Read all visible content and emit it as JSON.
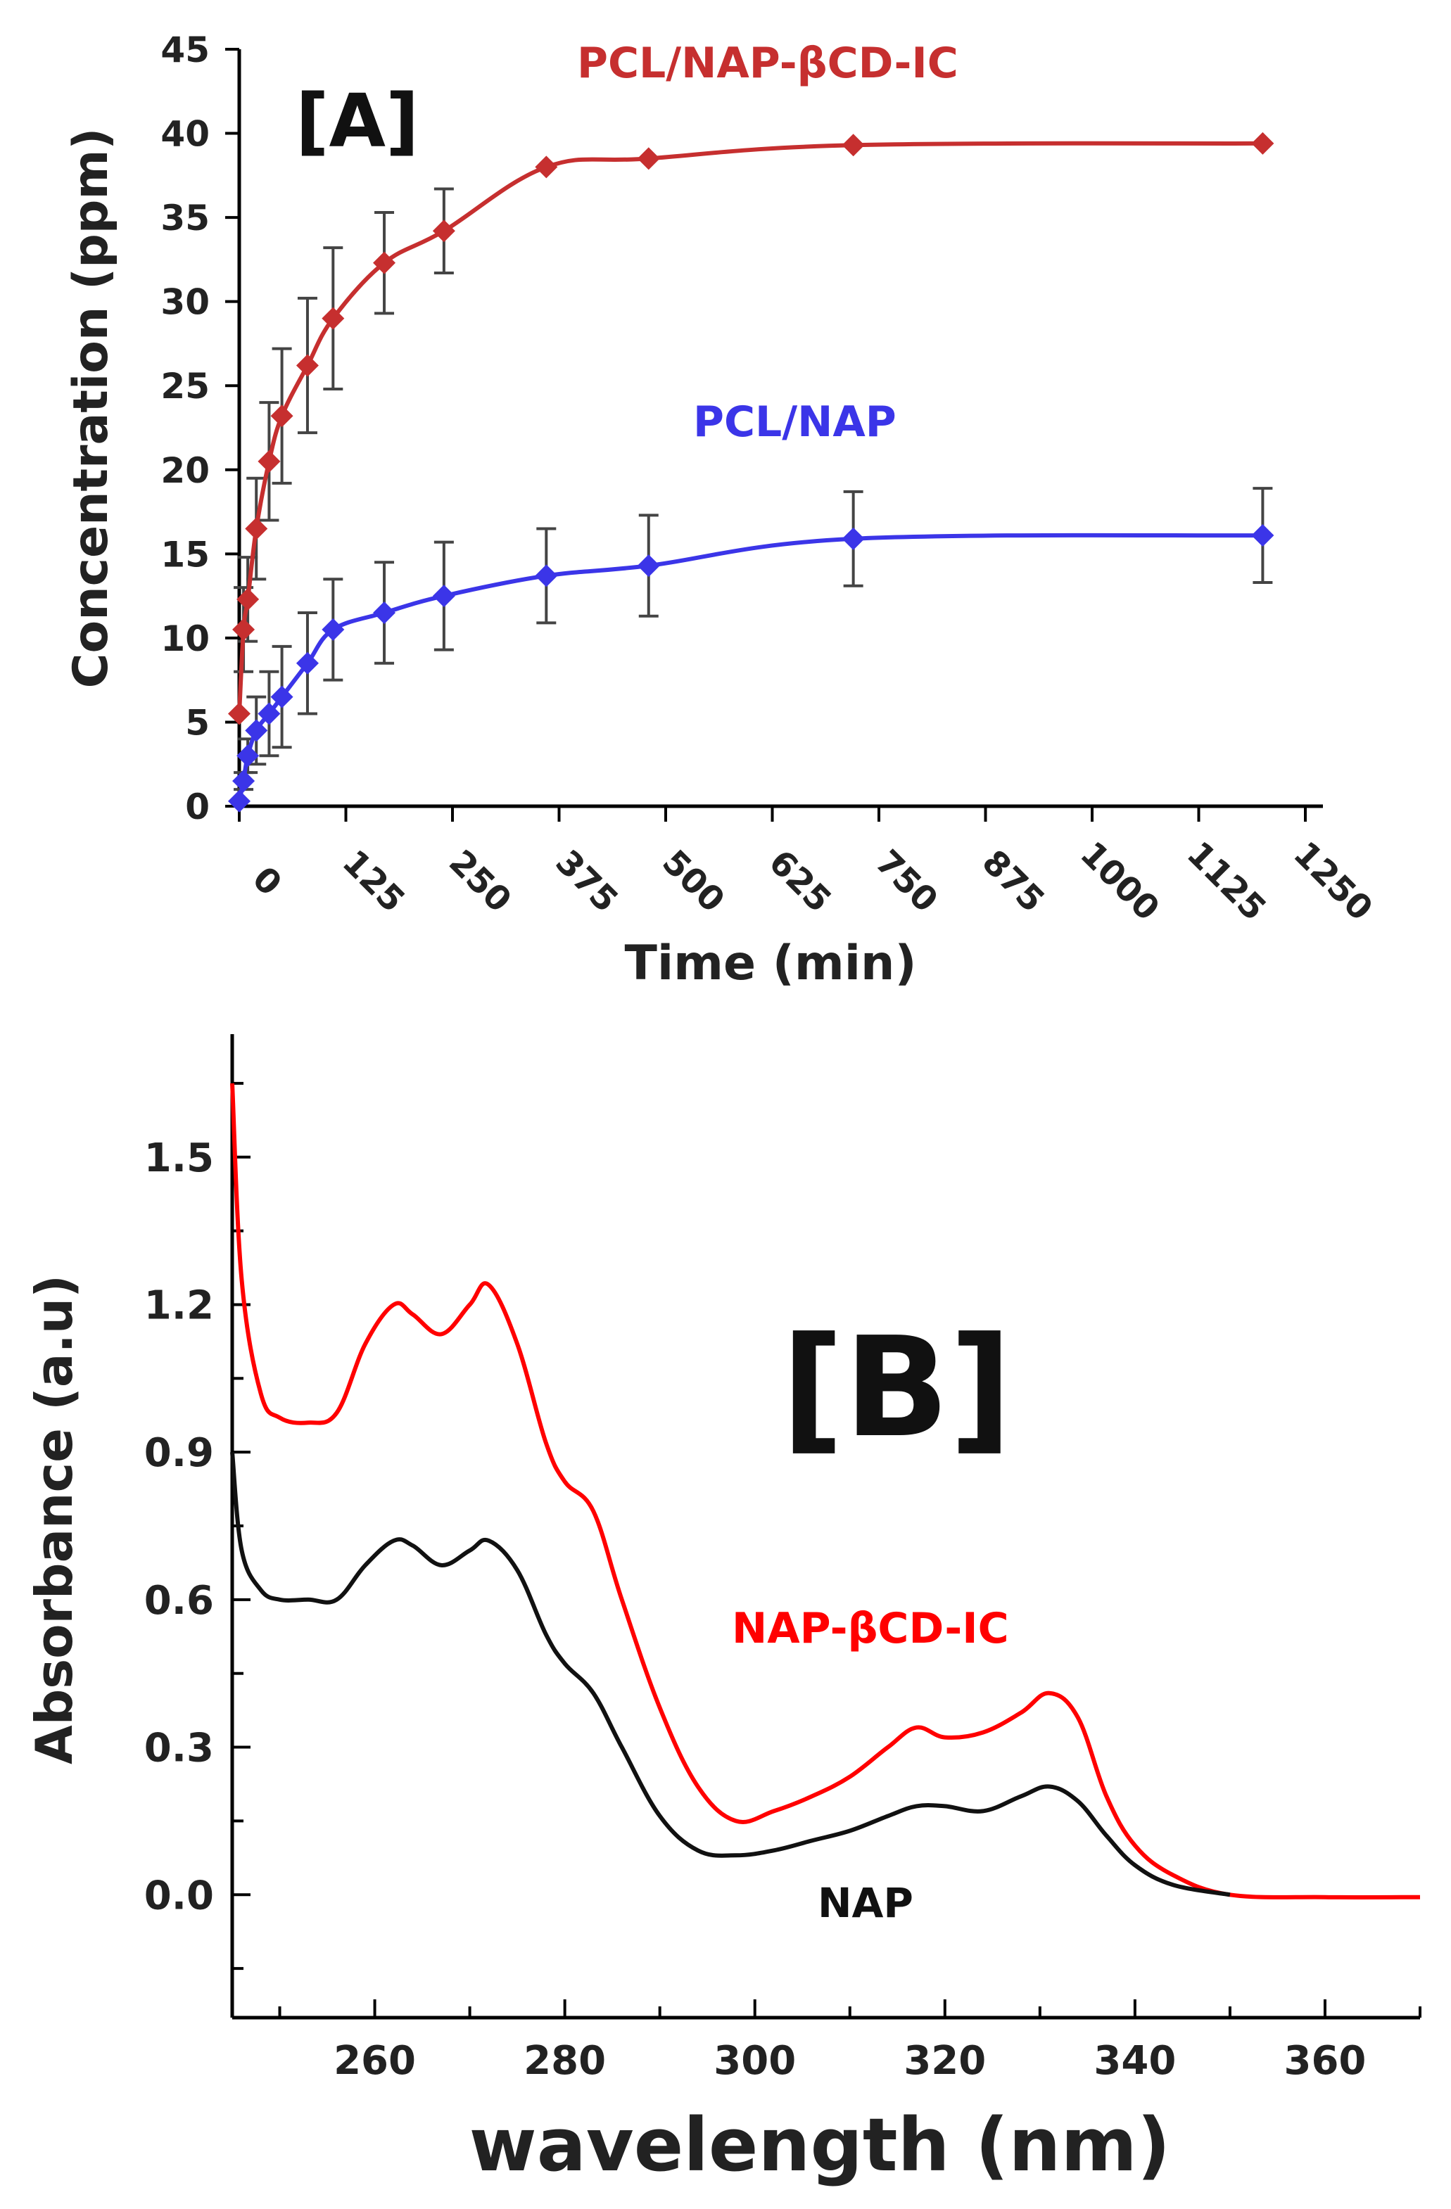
{
  "chart_data": [
    {
      "type": "line",
      "panel_label": "[A]",
      "xlabel": "Time (min)",
      "ylabel": "Concentration (ppm)",
      "xlim": [
        0,
        1250
      ],
      "ylim": [
        0,
        45
      ],
      "xticks": [
        0,
        125,
        250,
        375,
        500,
        625,
        750,
        875,
        1000,
        1125,
        1250
      ],
      "yticks": [
        0,
        5,
        10,
        15,
        20,
        25,
        30,
        35,
        40,
        45
      ],
      "series": [
        {
          "name": "PCL/NAP-βCD-IC",
          "color": "#c62f2f",
          "x": [
            0,
            5,
            10,
            20,
            35,
            50,
            80,
            110,
            170,
            240,
            360,
            480,
            720,
            1200
          ],
          "y": [
            5.5,
            10.5,
            12.3,
            16.5,
            20.5,
            23.2,
            26.2,
            29.0,
            32.3,
            34.2,
            38.0,
            38.5,
            39.3,
            39.4
          ],
          "err": [
            0,
            2.5,
            2.5,
            3.0,
            3.5,
            4.0,
            4.0,
            4.2,
            3.0,
            2.5,
            0,
            0,
            0,
            0
          ]
        },
        {
          "name": "PCL/NAP",
          "color": "#3b35e8",
          "x": [
            0,
            5,
            10,
            20,
            35,
            50,
            80,
            110,
            170,
            240,
            360,
            480,
            720,
            1200
          ],
          "y": [
            0.3,
            1.5,
            3.0,
            4.5,
            5.5,
            6.5,
            8.5,
            10.5,
            11.5,
            12.5,
            13.7,
            14.3,
            15.9,
            16.1
          ],
          "err": [
            0,
            0.5,
            1.0,
            2.0,
            2.5,
            3.0,
            3.0,
            3.0,
            3.0,
            3.2,
            2.8,
            3.0,
            2.8,
            2.8
          ]
        }
      ]
    },
    {
      "type": "line",
      "panel_label": "[B]",
      "xlabel": "wavelength (nm)",
      "ylabel": "Absorbance (a.u)",
      "xlim": [
        245,
        370
      ],
      "ylim": [
        -0.25,
        1.75
      ],
      "xticks": [
        260,
        280,
        300,
        320,
        340,
        360
      ],
      "yticks": [
        0.0,
        0.3,
        0.6,
        0.9,
        1.2,
        1.5
      ],
      "ytick_labels": [
        "0.0",
        "0.3",
        "0.6",
        "0.9",
        "1.2",
        "1.5"
      ],
      "series": [
        {
          "name": "NAP-βCD-IC",
          "color": "#ff0000",
          "x": [
            245,
            246,
            248,
            250,
            253,
            256,
            259,
            262,
            264,
            267,
            270,
            272,
            275,
            278,
            280,
            283,
            286,
            290,
            294,
            298,
            302,
            306,
            310,
            314,
            317,
            320,
            324,
            328,
            331,
            334,
            337,
            340,
            344,
            350,
            360,
            370
          ],
          "y": [
            1.65,
            1.25,
            1.02,
            0.97,
            0.96,
            0.98,
            1.12,
            1.2,
            1.18,
            1.14,
            1.2,
            1.24,
            1.12,
            0.92,
            0.84,
            0.78,
            0.6,
            0.38,
            0.22,
            0.15,
            0.17,
            0.2,
            0.24,
            0.3,
            0.34,
            0.32,
            0.33,
            0.37,
            0.41,
            0.36,
            0.2,
            0.1,
            0.04,
            0.0,
            -0.005,
            -0.005
          ]
        },
        {
          "name": "NAP",
          "color": "#111111",
          "x": [
            245,
            246,
            248,
            250,
            253,
            256,
            259,
            262,
            264,
            267,
            270,
            272,
            275,
            278,
            280,
            283,
            286,
            290,
            294,
            298,
            302,
            306,
            310,
            314,
            317,
            320,
            324,
            328,
            331,
            334,
            337,
            340,
            344,
            350
          ],
          "y": [
            0.9,
            0.7,
            0.62,
            0.6,
            0.6,
            0.6,
            0.67,
            0.72,
            0.71,
            0.67,
            0.7,
            0.72,
            0.66,
            0.53,
            0.47,
            0.41,
            0.3,
            0.16,
            0.09,
            0.08,
            0.09,
            0.11,
            0.13,
            0.16,
            0.18,
            0.18,
            0.17,
            0.2,
            0.22,
            0.19,
            0.12,
            0.06,
            0.02,
            0.0
          ]
        }
      ]
    }
  ]
}
